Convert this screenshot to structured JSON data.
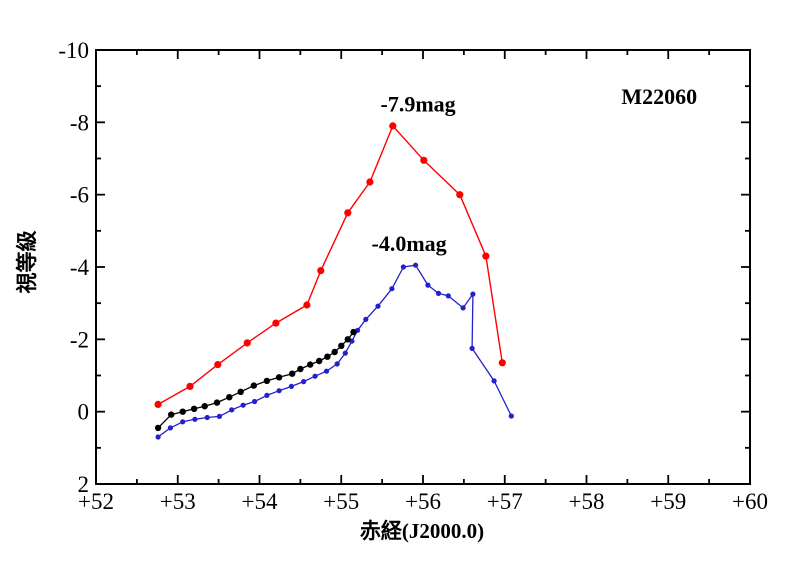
{
  "page": {
    "background": "#ffffff"
  },
  "chart_data": {
    "type": "line",
    "title": "M22060",
    "xlabel": "赤経(J2000.0)",
    "ylabel": "視等級",
    "x_range": [
      52,
      60
    ],
    "y_range_mag": [
      -10,
      2
    ],
    "y_axis_orientation": "inverted (-10 at top, +2 at bottom)",
    "grid": false,
    "legend_position": "none",
    "frame": "full box with inward ticks",
    "x_major_ticks": [
      52,
      53,
      54,
      55,
      56,
      57,
      58,
      59,
      60
    ],
    "x_tick_labels": [
      "+52",
      "+53",
      "+54",
      "+55",
      "+56",
      "+57",
      "+58",
      "+59",
      "+60"
    ],
    "x_minor_step": 0.5,
    "y_major_ticks": [
      -10,
      -8,
      -6,
      -4,
      -2,
      0,
      2
    ],
    "y_tick_labels": [
      "-10",
      "-8",
      "-6",
      "-4",
      "-2",
      "0",
      "2"
    ],
    "y_minor_step": 1,
    "annotations": [
      {
        "id": "red-peak-label",
        "text": "-7.9mag",
        "x": 55.94,
        "y": -8.5,
        "color": "#000000"
      },
      {
        "id": "blue-peak-label",
        "text": "-4.0mag",
        "x": 55.83,
        "y": -4.64,
        "color": "#000000"
      },
      {
        "id": "object-id-label",
        "text": "M22060",
        "x": 58.89,
        "y": -8.7,
        "color": "#000000"
      }
    ],
    "series": [
      {
        "name": "blue",
        "color": "#2222cc",
        "marker_radius": 2.6,
        "line_width": 1.3,
        "points": [
          [
            52.76,
            0.7
          ],
          [
            52.91,
            0.45
          ],
          [
            53.06,
            0.28
          ],
          [
            53.21,
            0.21
          ],
          [
            53.36,
            0.16
          ],
          [
            53.51,
            0.13
          ],
          [
            53.66,
            -0.05
          ],
          [
            53.8,
            -0.18
          ],
          [
            53.94,
            -0.28
          ],
          [
            54.09,
            -0.45
          ],
          [
            54.24,
            -0.58
          ],
          [
            54.39,
            -0.7
          ],
          [
            54.54,
            -0.83
          ],
          [
            54.68,
            -0.98
          ],
          [
            54.82,
            -1.12
          ],
          [
            54.95,
            -1.32
          ],
          [
            55.05,
            -1.62
          ],
          [
            55.13,
            -1.95
          ],
          [
            55.2,
            -2.25
          ],
          [
            55.3,
            -2.55
          ],
          [
            55.45,
            -2.92
          ],
          [
            55.62,
            -3.4
          ],
          [
            55.76,
            -4.0
          ],
          [
            55.91,
            -4.05
          ],
          [
            56.06,
            -3.5
          ],
          [
            56.19,
            -3.27
          ],
          [
            56.31,
            -3.2
          ],
          [
            56.49,
            -2.87
          ],
          [
            56.61,
            -3.25
          ],
          [
            56.6,
            -1.75
          ],
          [
            56.87,
            -0.85
          ],
          [
            57.08,
            0.12
          ]
        ]
      },
      {
        "name": "black",
        "color": "#000000",
        "marker_radius": 3.2,
        "line_width": 1.3,
        "points": [
          [
            52.76,
            0.45
          ],
          [
            52.92,
            0.08
          ],
          [
            53.06,
            0.0
          ],
          [
            53.2,
            -0.08
          ],
          [
            53.33,
            -0.15
          ],
          [
            53.48,
            -0.25
          ],
          [
            53.63,
            -0.4
          ],
          [
            53.77,
            -0.55
          ],
          [
            53.93,
            -0.72
          ],
          [
            54.09,
            -0.85
          ],
          [
            54.24,
            -0.95
          ],
          [
            54.4,
            -1.05
          ],
          [
            54.5,
            -1.18
          ],
          [
            54.62,
            -1.3
          ],
          [
            54.73,
            -1.4
          ],
          [
            54.83,
            -1.52
          ],
          [
            54.92,
            -1.65
          ],
          [
            55.0,
            -1.82
          ],
          [
            55.08,
            -2.0
          ],
          [
            55.15,
            -2.2
          ]
        ]
      },
      {
        "name": "red",
        "color": "#ff0000",
        "marker_radius": 3.6,
        "line_width": 1.4,
        "points": [
          [
            52.76,
            -0.2
          ],
          [
            53.15,
            -0.7
          ],
          [
            53.49,
            -1.3
          ],
          [
            53.85,
            -1.9
          ],
          [
            54.2,
            -2.45
          ],
          [
            54.58,
            -2.95
          ],
          [
            54.75,
            -3.9
          ],
          [
            55.08,
            -5.5
          ],
          [
            55.35,
            -6.35
          ],
          [
            55.63,
            -7.9
          ],
          [
            56.01,
            -6.95
          ],
          [
            56.45,
            -6.0
          ],
          [
            56.77,
            -4.3
          ],
          [
            56.97,
            -1.35
          ]
        ]
      }
    ]
  }
}
